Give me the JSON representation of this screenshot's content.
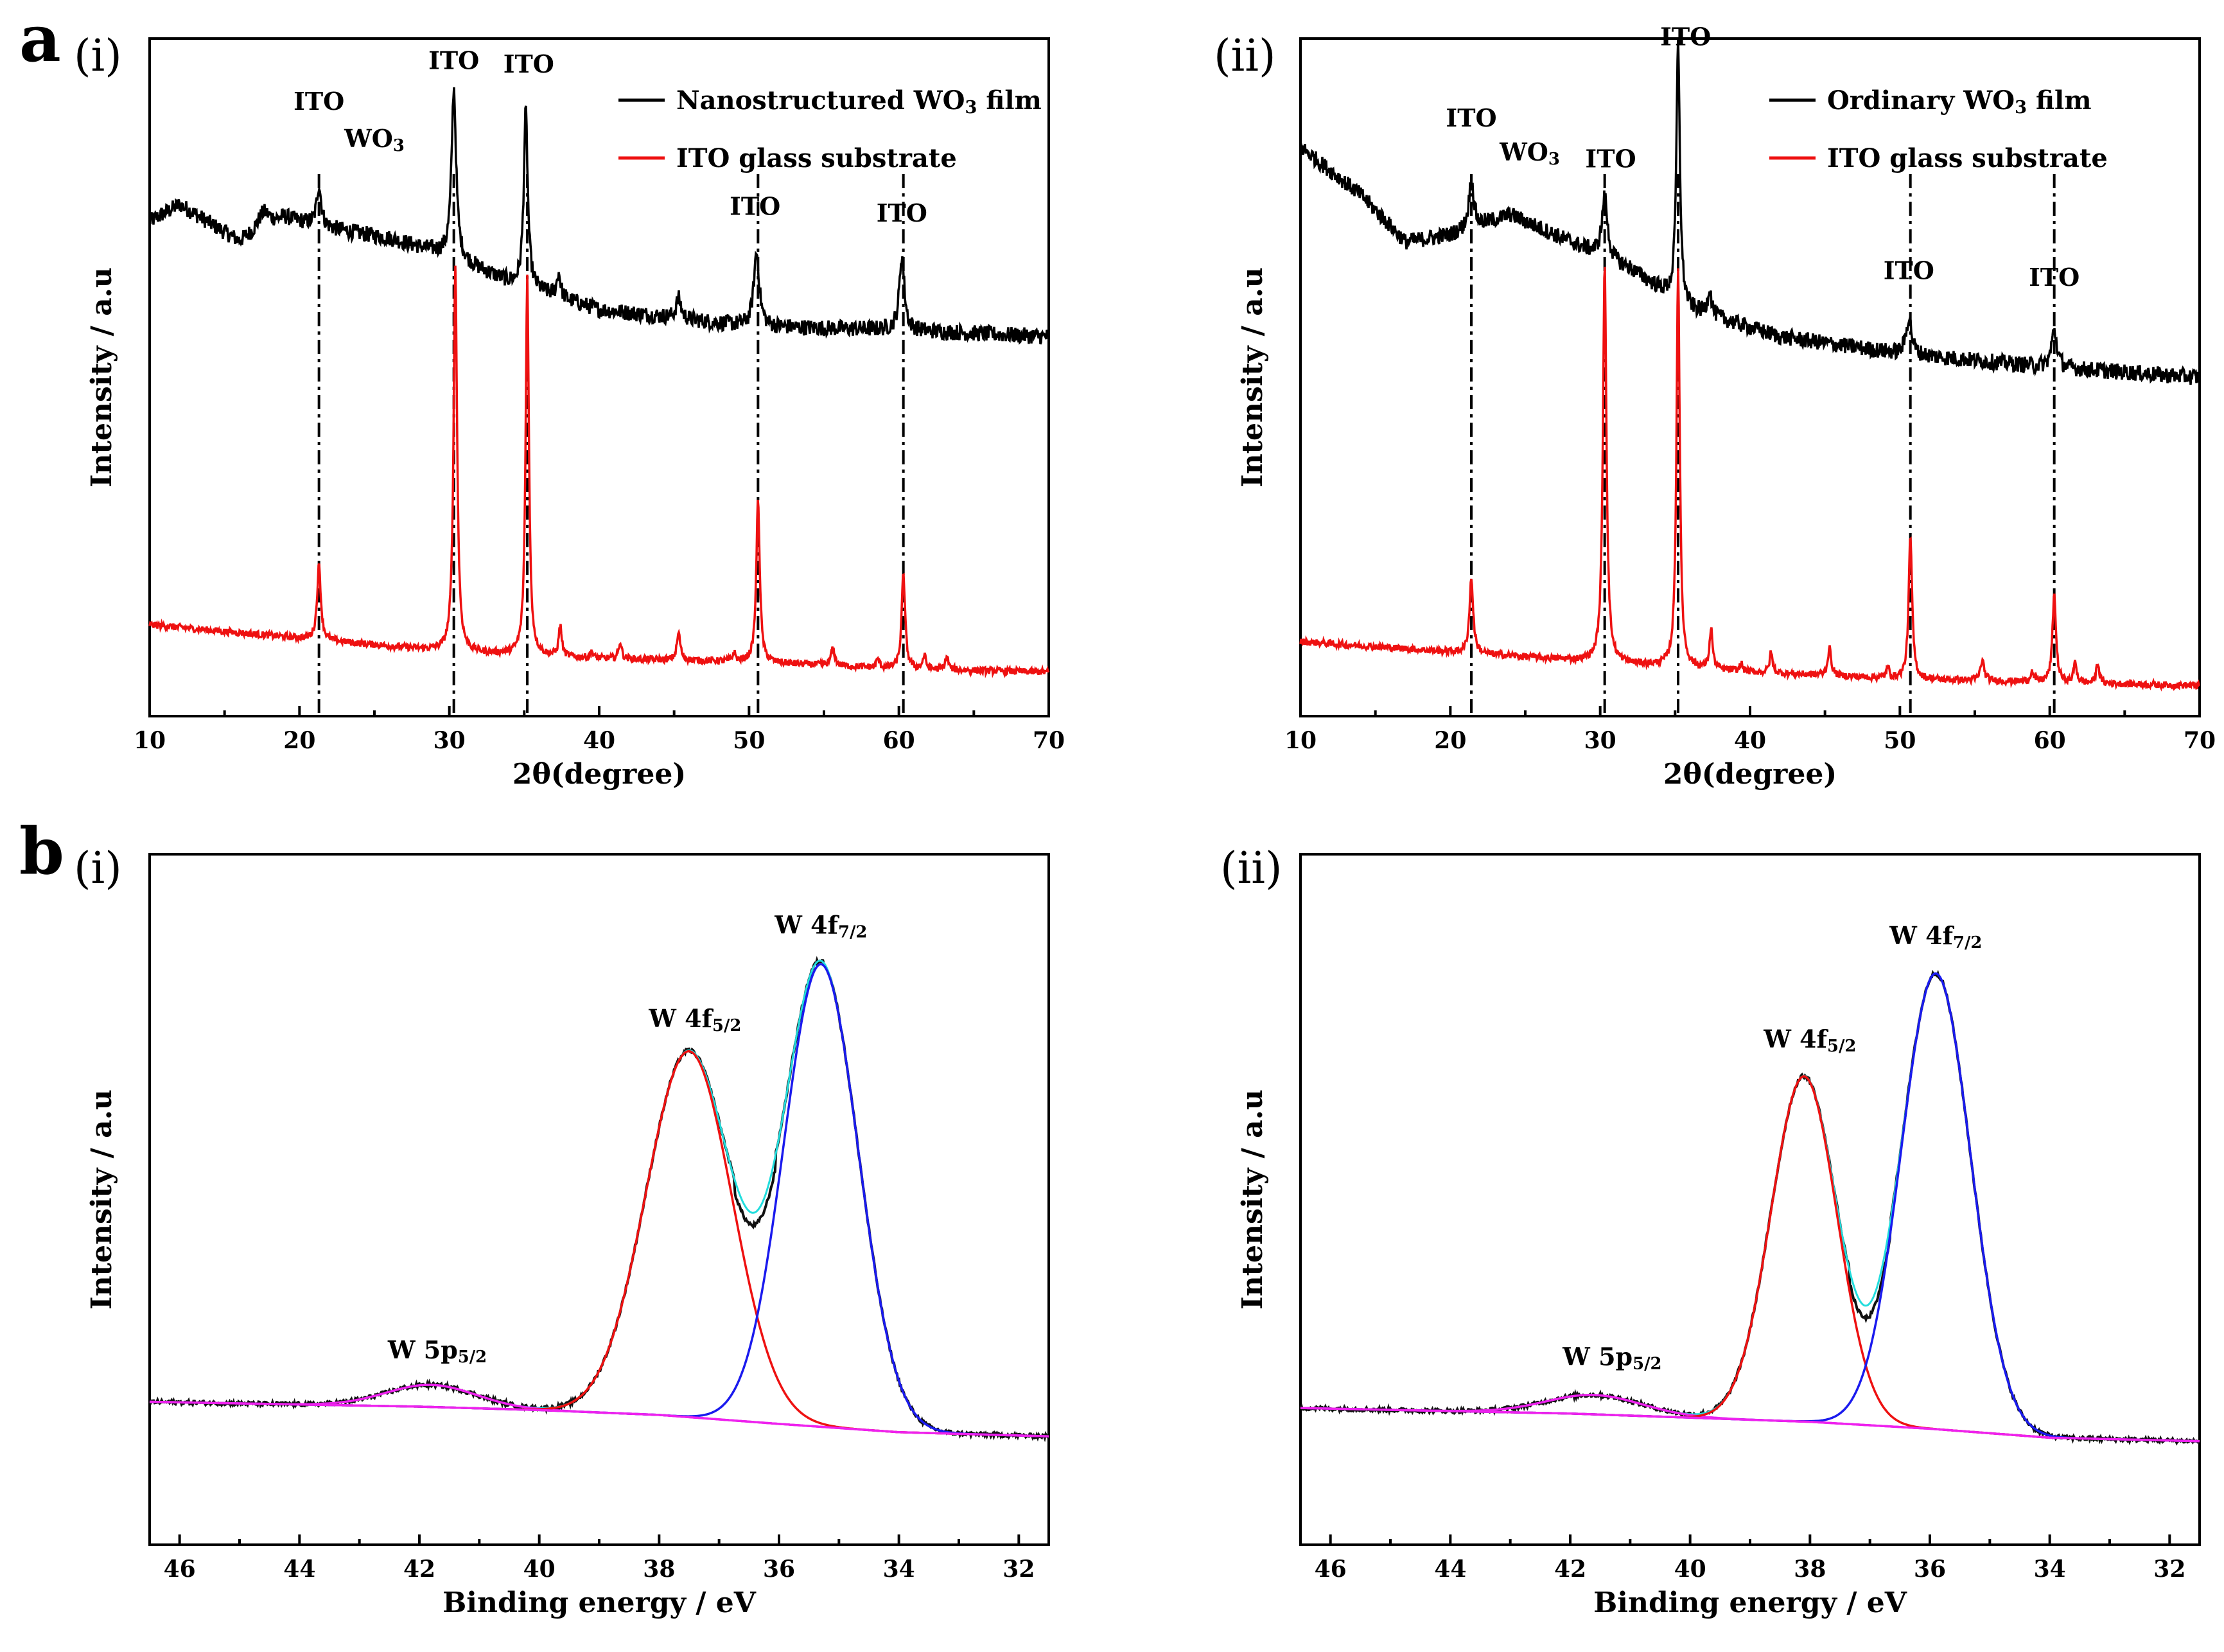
{
  "figure": {
    "panel_a": {
      "letter": "a",
      "sub_i": "(i)",
      "sub_ii": "(ii)"
    },
    "panel_b": {
      "letter": "b",
      "sub_i": "(i)",
      "sub_ii": "(ii)"
    }
  },
  "colors": {
    "black": "#000000",
    "red": "#ee1111",
    "blue": "#1a1aee",
    "magenta": "#ee22ee",
    "cyan": "#22dddd"
  },
  "chart_data": [
    {
      "id": "xrd_i",
      "type": "line",
      "title": "(i)",
      "xlabel": "2θ(degree)",
      "ylabel": "Intensity / a.u",
      "xlim": [
        10,
        70
      ],
      "xticks": [
        10,
        20,
        30,
        40,
        50,
        60,
        70
      ],
      "series": [
        {
          "name": "Nanostructured WO",
          "sub": "3",
          "suffix": " film",
          "color": "#000000",
          "baseline": [
            [
              10,
              0.73
            ],
            [
              12,
              0.755
            ],
            [
              16,
              0.7
            ],
            [
              19,
              0.735
            ],
            [
              22,
              0.72
            ],
            [
              26,
              0.705
            ],
            [
              30,
              0.68
            ],
            [
              34,
              0.64
            ],
            [
              40,
              0.6
            ],
            [
              50,
              0.575
            ],
            [
              60,
              0.57
            ],
            [
              70,
              0.56
            ]
          ],
          "peaks": [
            [
              21.3,
              0.06,
              0.18
            ],
            [
              17.6,
              0.025,
              0.5
            ],
            [
              30.3,
              0.25,
              0.18
            ],
            [
              35.1,
              0.26,
              0.16
            ],
            [
              37.3,
              0.035,
              0.15
            ],
            [
              45.3,
              0.03,
              0.2
            ],
            [
              50.5,
              0.11,
              0.22
            ],
            [
              60.2,
              0.11,
              0.2
            ]
          ]
        },
        {
          "name": "ITO glass substrate",
          "sub": "",
          "suffix": "",
          "color": "#ee1111",
          "baseline": [
            [
              10,
              0.135
            ],
            [
              20,
              0.115
            ],
            [
              30,
              0.095
            ],
            [
              40,
              0.085
            ],
            [
              50,
              0.08
            ],
            [
              60,
              0.07
            ],
            [
              70,
              0.065
            ]
          ],
          "peaks": [
            [
              21.3,
              0.11,
              0.15
            ],
            [
              30.4,
              0.57,
              0.14
            ],
            [
              35.2,
              0.56,
              0.13
            ],
            [
              37.4,
              0.045,
              0.12
            ],
            [
              39.5,
              0.01,
              0.1
            ],
            [
              41.4,
              0.025,
              0.12
            ],
            [
              45.3,
              0.04,
              0.14
            ],
            [
              49.0,
              0.012,
              0.12
            ],
            [
              50.6,
              0.24,
              0.14
            ],
            [
              55.6,
              0.025,
              0.15
            ],
            [
              58.6,
              0.012,
              0.12
            ],
            [
              60.3,
              0.14,
              0.14
            ],
            [
              61.7,
              0.02,
              0.12
            ],
            [
              63.2,
              0.02,
              0.12
            ]
          ]
        }
      ],
      "annotations": [
        {
          "text": "ITO",
          "sub": "",
          "x": 21.3,
          "y": 0.895
        },
        {
          "text": "WO",
          "sub": "3",
          "x": 25.0,
          "y": 0.84
        },
        {
          "text": "ITO",
          "sub": "",
          "x": 30.3,
          "y": 0.955
        },
        {
          "text": "ITO",
          "sub": "",
          "x": 35.3,
          "y": 0.95
        },
        {
          "text": "ITO",
          "sub": "",
          "x": 50.4,
          "y": 0.74
        },
        {
          "text": "ITO",
          "sub": "",
          "x": 60.2,
          "y": 0.73
        }
      ],
      "vlines": [
        21.3,
        30.3,
        35.2,
        50.6,
        60.3
      ]
    },
    {
      "id": "xrd_ii",
      "type": "line",
      "title": "(ii)",
      "xlabel": "2θ(degree)",
      "ylabel": "Intensity / a.u",
      "xlim": [
        10,
        70
      ],
      "xticks": [
        10,
        20,
        30,
        40,
        50,
        60,
        70
      ],
      "series": [
        {
          "name": "Ordinary WO",
          "sub": "3",
          "suffix": " film",
          "color": "#000000",
          "baseline": [
            [
              10,
              0.84
            ],
            [
              14,
              0.77
            ],
            [
              17,
              0.7
            ],
            [
              20,
              0.71
            ],
            [
              24,
              0.74
            ],
            [
              28,
              0.7
            ],
            [
              32,
              0.66
            ],
            [
              36,
              0.6
            ],
            [
              42,
              0.56
            ],
            [
              50,
              0.535
            ],
            [
              60,
              0.515
            ],
            [
              70,
              0.5
            ]
          ],
          "peaks": [
            [
              21.4,
              0.07,
              0.2
            ],
            [
              30.3,
              0.09,
              0.22
            ],
            [
              35.2,
              0.38,
              0.14
            ],
            [
              37.3,
              0.04,
              0.15
            ],
            [
              50.6,
              0.055,
              0.22
            ],
            [
              60.3,
              0.055,
              0.22
            ]
          ]
        },
        {
          "name": "ITO glass substrate",
          "sub": "",
          "suffix": "",
          "color": "#ee1111",
          "baseline": [
            [
              10,
              0.11
            ],
            [
              20,
              0.095
            ],
            [
              30,
              0.08
            ],
            [
              40,
              0.065
            ],
            [
              50,
              0.055
            ],
            [
              60,
              0.05
            ],
            [
              70,
              0.045
            ]
          ],
          "peaks": [
            [
              21.4,
              0.11,
              0.15
            ],
            [
              30.3,
              0.59,
              0.14
            ],
            [
              35.2,
              0.59,
              0.13
            ],
            [
              37.4,
              0.06,
              0.12
            ],
            [
              39.4,
              0.012,
              0.1
            ],
            [
              41.4,
              0.03,
              0.12
            ],
            [
              45.3,
              0.04,
              0.14
            ],
            [
              49.2,
              0.015,
              0.12
            ],
            [
              50.7,
              0.21,
              0.14
            ],
            [
              55.5,
              0.03,
              0.15
            ],
            [
              58.8,
              0.015,
              0.12
            ],
            [
              60.3,
              0.13,
              0.14
            ],
            [
              61.7,
              0.03,
              0.12
            ],
            [
              63.2,
              0.03,
              0.12
            ]
          ]
        }
      ],
      "annotations": [
        {
          "text": "ITO",
          "sub": "",
          "x": 21.4,
          "y": 0.87
        },
        {
          "text": "WO",
          "sub": "3",
          "x": 25.3,
          "y": 0.82
        },
        {
          "text": "ITO",
          "sub": "",
          "x": 30.7,
          "y": 0.81
        },
        {
          "text": "ITO",
          "sub": "",
          "x": 35.7,
          "y": 0.99
        },
        {
          "text": "ITO",
          "sub": "",
          "x": 50.6,
          "y": 0.645
        },
        {
          "text": "ITO",
          "sub": "",
          "x": 60.3,
          "y": 0.635
        }
      ],
      "vlines": [
        21.4,
        30.3,
        35.2,
        50.7,
        60.3
      ]
    },
    {
      "id": "xps_i",
      "type": "line",
      "title": "(i)",
      "xlabel": "Binding energy / eV",
      "ylabel": "Intensity / a.u",
      "xlim": [
        46.5,
        31.5
      ],
      "xticks": [
        46,
        44,
        42,
        40,
        38,
        36,
        34,
        32
      ],
      "background": [
        [
          46.5,
          0.207
        ],
        [
          42,
          0.2
        ],
        [
          40,
          0.195
        ],
        [
          38,
          0.188
        ],
        [
          36,
          0.175
        ],
        [
          34,
          0.163
        ],
        [
          31.5,
          0.157
        ]
      ],
      "components": [
        {
          "name": "W 5p5/2",
          "center": 41.8,
          "amp": 0.032,
          "width": 0.75,
          "color": "#ee22ee"
        },
        {
          "name": "W 4f5/2",
          "center": 37.5,
          "amp": 0.53,
          "width": 0.72,
          "color": "#ee1111"
        },
        {
          "name": "W 4f7/2",
          "center": 35.3,
          "amp": 0.67,
          "width": 0.62,
          "color": "#1a1aee"
        }
      ],
      "annotations": [
        {
          "text": "W 5p",
          "sub": "5/2",
          "x": 41.7,
          "y": 0.27
        },
        {
          "text": "W 4f",
          "sub": "5/2",
          "x": 37.4,
          "y": 0.75
        },
        {
          "text": "W 4f",
          "sub": "7/2",
          "x": 35.3,
          "y": 0.885
        }
      ]
    },
    {
      "id": "xps_ii",
      "type": "line",
      "title": "(ii)",
      "xlabel": "Binding energy / eV",
      "ylabel": "Intensity / a.u",
      "xlim": [
        46.5,
        31.5
      ],
      "xticks": [
        46,
        44,
        42,
        40,
        38,
        36,
        34,
        32
      ],
      "background": [
        [
          46.5,
          0.198
        ],
        [
          42,
          0.19
        ],
        [
          40,
          0.184
        ],
        [
          38,
          0.178
        ],
        [
          36,
          0.168
        ],
        [
          34,
          0.155
        ],
        [
          31.5,
          0.15
        ]
      ],
      "components": [
        {
          "name": "W 5p5/2",
          "center": 41.6,
          "amp": 0.028,
          "width": 0.8,
          "color": "#ee22ee"
        },
        {
          "name": "W 4f5/2",
          "center": 38.1,
          "amp": 0.5,
          "width": 0.55,
          "color": "#ee1111"
        },
        {
          "name": "W 4f7/2",
          "center": 35.9,
          "amp": 0.66,
          "width": 0.58,
          "color": "#1a1aee"
        }
      ],
      "annotations": [
        {
          "text": "W 5p",
          "sub": "5/2",
          "x": 41.3,
          "y": 0.26
        },
        {
          "text": "W 4f",
          "sub": "5/2",
          "x": 38.0,
          "y": 0.72
        },
        {
          "text": "W 4f",
          "sub": "7/2",
          "x": 35.9,
          "y": 0.87
        }
      ]
    }
  ]
}
